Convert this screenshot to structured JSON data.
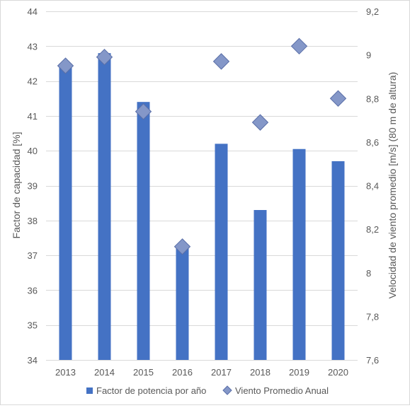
{
  "chart_data": {
    "type": "bar",
    "categories": [
      "2013",
      "2014",
      "2015",
      "2016",
      "2017",
      "2018",
      "2019",
      "2020"
    ],
    "series": [
      {
        "name": "Factor de potencia por año",
        "type": "bar",
        "axis": "left",
        "color": "#4472c4",
        "values": [
          42.5,
          42.8,
          41.4,
          37.2,
          40.2,
          38.3,
          40.05,
          39.7
        ]
      },
      {
        "name": "Viento Promedio Anual",
        "type": "scatter",
        "axis": "right",
        "color": "#8497c8",
        "marker": "diamond",
        "values": [
          8.95,
          8.99,
          8.74,
          8.12,
          8.97,
          8.69,
          9.04,
          8.8
        ]
      }
    ],
    "ylabel": "Factor de capacidad [%]",
    "ylim": [
      34,
      44
    ],
    "yticks": [
      "34",
      "35",
      "36",
      "37",
      "38",
      "39",
      "40",
      "41",
      "42",
      "43",
      "44"
    ],
    "y2label": "Velocidad de viento promedio [m/s] (80 m de altura)",
    "y2lim": [
      7.6,
      9.2
    ],
    "y2ticks": [
      "7,6",
      "7,8",
      "8",
      "8,2",
      "8,4",
      "8,6",
      "8,8",
      "9",
      "9,2"
    ],
    "grid": true,
    "legend": "bottom"
  }
}
